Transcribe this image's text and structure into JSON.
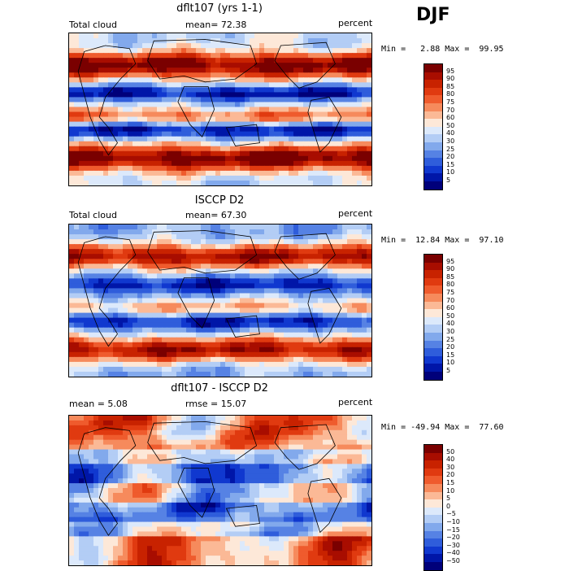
{
  "season": "DJF",
  "panels": [
    {
      "title": "dflt107 (yrs 1-1)",
      "left_label": "Total cloud",
      "center_label": "mean=  72.38",
      "right_label": "percent",
      "minmax": "Min =   2.88 Max =  99.95"
    },
    {
      "title": "ISCCP D2",
      "left_label": "Total cloud",
      "center_label": "mean=  67.30",
      "right_label": "percent",
      "minmax": "Min =  12.84 Max =  97.10"
    },
    {
      "title": "dflt107 - ISCCP D2",
      "left_label": "mean =   5.08",
      "center_label": "rmse =  15.07",
      "right_label": "percent",
      "minmax": "Min = -49.94 Max =  77.60"
    }
  ],
  "colorbars": {
    "absolute": {
      "labels": [
        "95",
        "90",
        "85",
        "80",
        "75",
        "70",
        "60",
        "50",
        "40",
        "30",
        "25",
        "20",
        "15",
        "10",
        "5"
      ],
      "colors": [
        "#7a0000",
        "#a80d00",
        "#c82200",
        "#e03a10",
        "#ef5b2d",
        "#f68a5c",
        "#fbb996",
        "#fde8d8",
        "#dce9fb",
        "#b3cdf5",
        "#82a9ec",
        "#5682e4",
        "#2f5ddb",
        "#1038cf",
        "#0016a8",
        "#00007a"
      ]
    },
    "difference": {
      "labels": [
        "50",
        "40",
        "30",
        "20",
        "15",
        "10",
        "5",
        "0",
        "−5",
        "−10",
        "−15",
        "−20",
        "−30",
        "−40",
        "−50"
      ],
      "colors": [
        "#7a0000",
        "#a80d00",
        "#c82200",
        "#e03a10",
        "#ef5b2d",
        "#f68a5c",
        "#fbb996",
        "#fde8d8",
        "#dce9fb",
        "#b3cdf5",
        "#82a9ec",
        "#5682e4",
        "#2f5ddb",
        "#1038cf",
        "#0016a8",
        "#00007a"
      ]
    }
  },
  "chart_data": [
    {
      "type": "heatmap",
      "title": "dflt107 (yrs 1-1)",
      "variable": "Total cloud",
      "units": "percent",
      "mean": 72.38,
      "min": 2.88,
      "max": 99.95,
      "levels": [
        5,
        10,
        15,
        20,
        25,
        30,
        40,
        50,
        60,
        70,
        75,
        80,
        85,
        90,
        95
      ]
    },
    {
      "type": "heatmap",
      "title": "ISCCP D2",
      "variable": "Total cloud",
      "units": "percent",
      "mean": 67.3,
      "min": 12.84,
      "max": 97.1,
      "levels": [
        5,
        10,
        15,
        20,
        25,
        30,
        40,
        50,
        60,
        70,
        75,
        80,
        85,
        90,
        95
      ]
    },
    {
      "type": "heatmap",
      "title": "dflt107 - ISCCP D2",
      "units": "percent",
      "mean": 5.08,
      "rmse": 15.07,
      "min": -49.94,
      "max": 77.6,
      "levels": [
        -50,
        -40,
        -30,
        -20,
        -15,
        -10,
        -5,
        0,
        5,
        10,
        15,
        20,
        30,
        40,
        50
      ]
    }
  ]
}
